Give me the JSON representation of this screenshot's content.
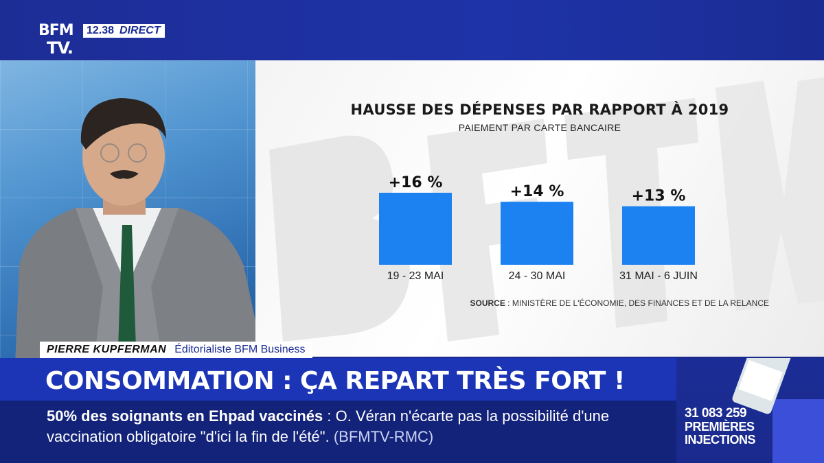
{
  "channel": {
    "logo_line1": "BFM",
    "logo_line2": "TV.",
    "time": "12.38",
    "live_label": "DIRECT"
  },
  "chart_data": {
    "type": "bar",
    "title": "HAUSSE DES DÉPENSES PAR RAPPORT À 2019",
    "subtitle": "PAIEMENT PAR CARTE BANCAIRE",
    "categories": [
      "19 - 23 MAI",
      "24 - 30 MAI",
      "31 MAI - 6 JUIN"
    ],
    "values": [
      16,
      14,
      13
    ],
    "value_labels": [
      "+16 %",
      "+14 %",
      "+13 %"
    ],
    "bar_color": "#1c82f2",
    "ylim": [
      0,
      16
    ],
    "grid": false,
    "source_label": "SOURCE",
    "source_text": " : MINISTÈRE DE L'ÉCONOMIE, DES FINANCES ET DE LA RELANCE"
  },
  "guest": {
    "name": "PIERRE KUPFERMAN",
    "role": "Éditorialiste BFM Business"
  },
  "headline": "CONSOMMATION : ÇA REPART TRÈS FORT !",
  "ticker": {
    "head": "50% des soignants en Ehpad vaccinés",
    "separator": " : ",
    "body": "O. Véran n'écarte pas la possibilité d'une vaccination obligatoire \"d'ici la fin de l'été\".",
    "source": " (BFMTV-RMC)"
  },
  "counter": {
    "number": "31 083 259",
    "label_line1": "PREMIÈRES",
    "label_line2": "INJECTIONS"
  }
}
